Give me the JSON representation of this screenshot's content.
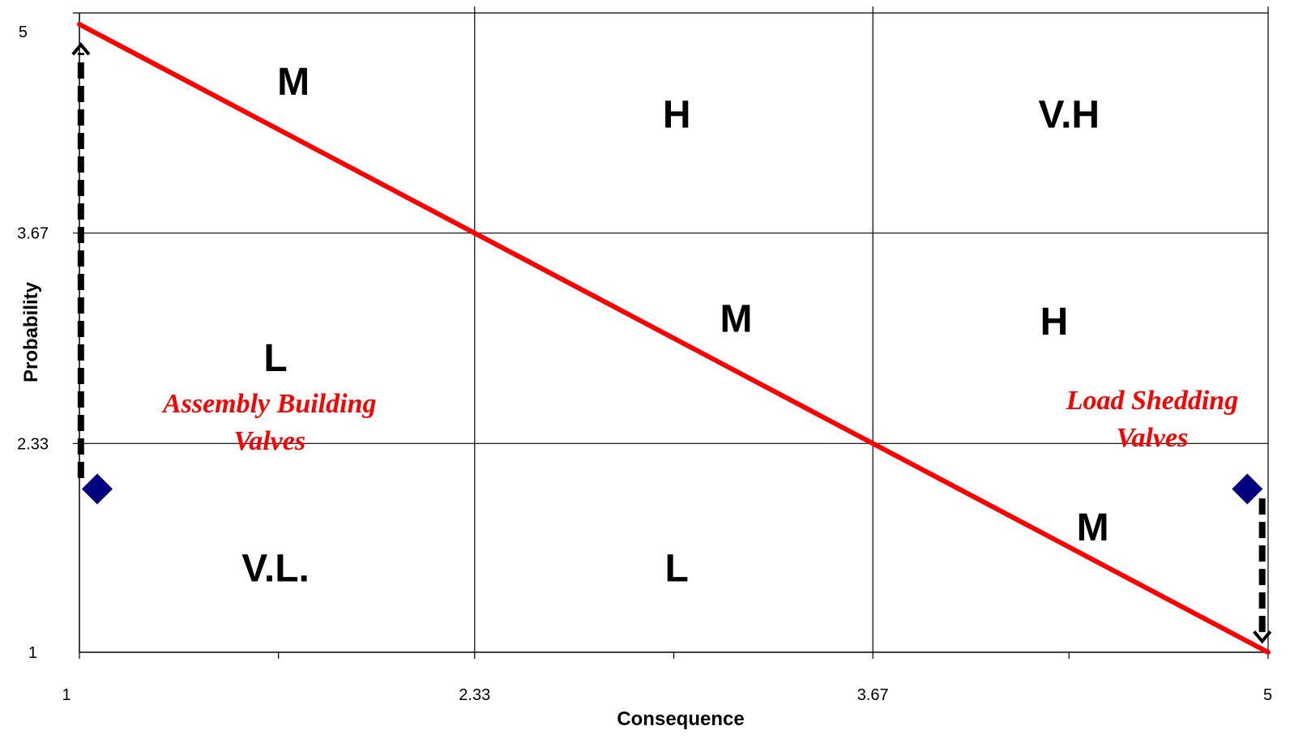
{
  "chart_data": {
    "type": "scatter",
    "title": "",
    "xlabel": "Consequence",
    "ylabel": "Probability",
    "xlim": [
      1,
      5
    ],
    "ylim": [
      1,
      5
    ],
    "x_ticks": [
      1,
      2.33,
      3.67,
      5
    ],
    "x_tick_labels": [
      "1",
      "2.33",
      "3.67",
      "5"
    ],
    "y_ticks": [
      1,
      2.33,
      3.67,
      5
    ],
    "y_tick_labels": [
      "1",
      "2.33",
      "3.67",
      "5"
    ],
    "x_minor_ticks": [
      1.67,
      3,
      4.33
    ],
    "grid": true,
    "legend": "none",
    "colors": {
      "line": "#ff0000",
      "marker": "#000080",
      "annotation": "#ff0000",
      "arrow": "#000000"
    },
    "risk_line": {
      "x": [
        1,
        5
      ],
      "y": [
        5,
        1
      ]
    },
    "points": [
      {
        "x": 1.06,
        "y": 2.04
      },
      {
        "x": 4.93,
        "y": 2.04
      }
    ],
    "zones": [
      {
        "label": "M",
        "x": 1.72,
        "y": 4.64
      },
      {
        "label": "H",
        "x": 3.01,
        "y": 4.43
      },
      {
        "label": "V.H",
        "x": 4.33,
        "y": 4.43
      },
      {
        "label": "M",
        "x": 3.21,
        "y": 3.13
      },
      {
        "label": "H",
        "x": 4.28,
        "y": 3.11
      },
      {
        "label": "L",
        "x": 1.66,
        "y": 2.88
      },
      {
        "label": "M",
        "x": 4.41,
        "y": 1.8
      },
      {
        "label": "V.L.",
        "x": 1.66,
        "y": 1.54
      },
      {
        "label": "L",
        "x": 3.01,
        "y": 1.54
      }
    ],
    "annotations": [
      {
        "lines": [
          "Assembly Building",
          "Valves"
        ],
        "x": 1.64,
        "y": 2.59
      },
      {
        "lines": [
          "Load Shedding",
          "Valves"
        ],
        "x": 4.61,
        "y": 2.61
      }
    ],
    "arrows": [
      {
        "from": [
          1.005,
          2.11
        ],
        "to": [
          1.005,
          4.87
        ],
        "head": "up"
      },
      {
        "from": [
          4.98,
          1.98
        ],
        "to": [
          4.98,
          1.07
        ],
        "head": "down"
      }
    ]
  }
}
